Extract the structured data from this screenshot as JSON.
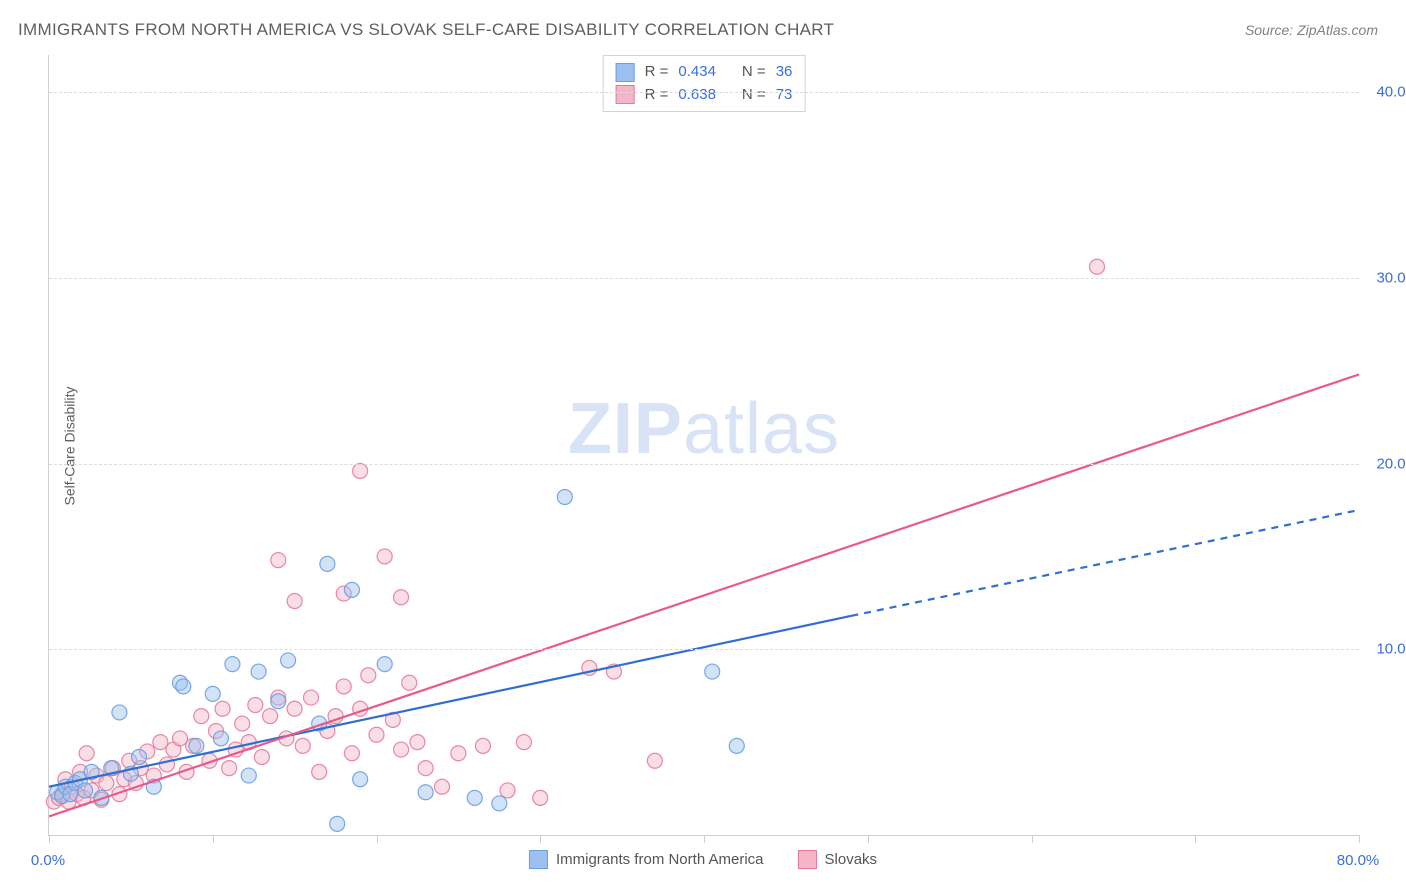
{
  "title": "IMMIGRANTS FROM NORTH AMERICA VS SLOVAK SELF-CARE DISABILITY CORRELATION CHART",
  "source_label": "Source: ",
  "source_name": "ZipAtlas.com",
  "ylabel": "Self-Care Disability",
  "watermark_bold": "ZIP",
  "watermark_rest": "atlas",
  "chart": {
    "type": "scatter",
    "xlim": [
      0,
      80
    ],
    "ylim": [
      0,
      42
    ],
    "xtick_positions": [
      0,
      10,
      20,
      30,
      40,
      50,
      60,
      70,
      80
    ],
    "xtick_labels": {
      "0": "0.0%",
      "80": "80.0%"
    },
    "ytick_positions": [
      10,
      20,
      30,
      40
    ],
    "ytick_labels": {
      "10": "10.0%",
      "20": "20.0%",
      "30": "30.0%",
      "40": "40.0%"
    },
    "grid_color": "#dcdcdc",
    "border_color": "#cfcfcf",
    "background": "#ffffff",
    "marker_radius": 7.5,
    "marker_opacity": 0.45,
    "marker_stroke_opacity": 0.9,
    "trend_line_width": 2.2,
    "series": [
      {
        "id": "immigrants",
        "name": "Immigrants from North America",
        "color_fill": "#9cc0ef",
        "color_stroke": "#6a9fe0",
        "line_color": "#2f6fd0",
        "r": "0.434",
        "n": "36",
        "trend": {
          "x1": 0,
          "y1": 2.6,
          "x2": 49,
          "y2": 11.8,
          "x2_dash": 80,
          "y2_dash": 17.5
        },
        "points": [
          [
            0.5,
            2.3
          ],
          [
            0.8,
            2.1
          ],
          [
            1.0,
            2.6
          ],
          [
            1.3,
            2.2
          ],
          [
            1.6,
            2.8
          ],
          [
            1.9,
            3.0
          ],
          [
            2.2,
            2.4
          ],
          [
            2.6,
            3.4
          ],
          [
            3.2,
            2.0
          ],
          [
            3.8,
            3.6
          ],
          [
            4.3,
            6.6
          ],
          [
            5.0,
            3.3
          ],
          [
            5.5,
            4.2
          ],
          [
            6.4,
            2.6
          ],
          [
            8.0,
            8.2
          ],
          [
            8.2,
            8.0
          ],
          [
            9.0,
            4.8
          ],
          [
            10.0,
            7.6
          ],
          [
            10.5,
            5.2
          ],
          [
            11.2,
            9.2
          ],
          [
            12.2,
            3.2
          ],
          [
            12.8,
            8.8
          ],
          [
            14.0,
            7.2
          ],
          [
            14.6,
            9.4
          ],
          [
            16.5,
            6.0
          ],
          [
            17.0,
            14.6
          ],
          [
            17.6,
            0.6
          ],
          [
            18.5,
            13.2
          ],
          [
            19.0,
            3.0
          ],
          [
            20.5,
            9.2
          ],
          [
            23.0,
            2.3
          ],
          [
            26.0,
            2.0
          ],
          [
            27.5,
            1.7
          ],
          [
            31.5,
            18.2
          ],
          [
            40.5,
            8.8
          ],
          [
            42.0,
            4.8
          ]
        ]
      },
      {
        "id": "slovaks",
        "name": "Slovaks",
        "color_fill": "#f4b6c6",
        "color_stroke": "#e77a9c",
        "line_color": "#e85a8a",
        "r": "0.638",
        "n": "73",
        "trend": {
          "x1": 0,
          "y1": 1.0,
          "x2": 80,
          "y2": 24.8
        },
        "points": [
          [
            0.3,
            1.8
          ],
          [
            0.6,
            2.0
          ],
          [
            0.8,
            2.2
          ],
          [
            1.0,
            3.0
          ],
          [
            1.2,
            1.8
          ],
          [
            1.4,
            2.6
          ],
          [
            1.7,
            2.2
          ],
          [
            1.9,
            3.4
          ],
          [
            2.1,
            2.0
          ],
          [
            2.3,
            4.4
          ],
          [
            2.6,
            2.4
          ],
          [
            2.9,
            3.2
          ],
          [
            3.2,
            1.9
          ],
          [
            3.5,
            2.8
          ],
          [
            3.9,
            3.6
          ],
          [
            4.3,
            2.2
          ],
          [
            4.6,
            3.0
          ],
          [
            4.9,
            4.0
          ],
          [
            5.3,
            2.8
          ],
          [
            5.6,
            3.6
          ],
          [
            6.0,
            4.5
          ],
          [
            6.4,
            3.2
          ],
          [
            6.8,
            5.0
          ],
          [
            7.2,
            3.8
          ],
          [
            7.6,
            4.6
          ],
          [
            8.0,
            5.2
          ],
          [
            8.4,
            3.4
          ],
          [
            8.8,
            4.8
          ],
          [
            9.3,
            6.4
          ],
          [
            9.8,
            4.0
          ],
          [
            10.2,
            5.6
          ],
          [
            10.6,
            6.8
          ],
          [
            11.0,
            3.6
          ],
          [
            11.4,
            4.6
          ],
          [
            11.8,
            6.0
          ],
          [
            12.2,
            5.0
          ],
          [
            12.6,
            7.0
          ],
          [
            13.0,
            4.2
          ],
          [
            13.5,
            6.4
          ],
          [
            14.0,
            7.4
          ],
          [
            14.0,
            14.8
          ],
          [
            14.5,
            5.2
          ],
          [
            15.0,
            6.8
          ],
          [
            15.0,
            12.6
          ],
          [
            15.5,
            4.8
          ],
          [
            16.0,
            7.4
          ],
          [
            16.5,
            3.4
          ],
          [
            17.0,
            5.6
          ],
          [
            17.5,
            6.4
          ],
          [
            18.0,
            8.0
          ],
          [
            18.0,
            13.0
          ],
          [
            18.5,
            4.4
          ],
          [
            19.0,
            6.8
          ],
          [
            19.0,
            19.6
          ],
          [
            19.5,
            8.6
          ],
          [
            20.0,
            5.4
          ],
          [
            20.5,
            15.0
          ],
          [
            21.0,
            6.2
          ],
          [
            21.5,
            4.6
          ],
          [
            21.5,
            12.8
          ],
          [
            22.0,
            8.2
          ],
          [
            22.5,
            5.0
          ],
          [
            23.0,
            3.6
          ],
          [
            24.0,
            2.6
          ],
          [
            25.0,
            4.4
          ],
          [
            26.5,
            4.8
          ],
          [
            28.0,
            2.4
          ],
          [
            29.0,
            5.0
          ],
          [
            30.0,
            2.0
          ],
          [
            33.0,
            9.0
          ],
          [
            34.5,
            8.8
          ],
          [
            37.0,
            4.0
          ],
          [
            64.0,
            30.6
          ]
        ]
      }
    ]
  },
  "legend_top": {
    "r_label": "R =",
    "n_label": "N ="
  },
  "colors": {
    "title": "#5f5f5f",
    "axis_label": "#5f5f5f",
    "tick_label": "#3a6fd8",
    "value_text": "#3a6fd8",
    "source_text": "#808080"
  }
}
